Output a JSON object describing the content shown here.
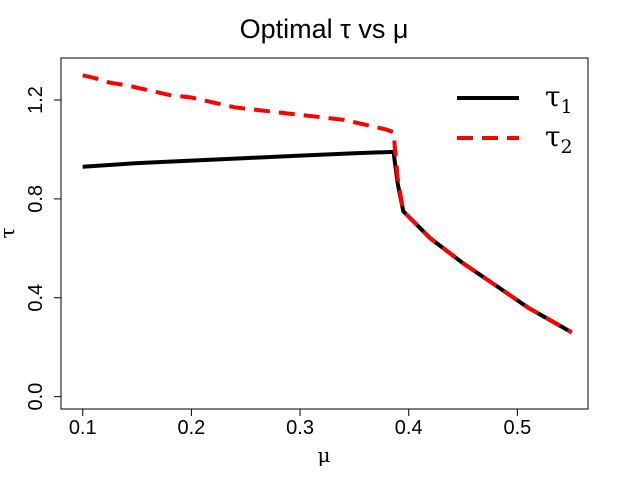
{
  "chart_data": {
    "type": "line",
    "title": "Optimal τ vs μ",
    "xlabel": "μ",
    "ylabel": "τ",
    "xlim": [
      0.08,
      0.565
    ],
    "ylim": [
      -0.05,
      1.37
    ],
    "x_ticks": [
      0.1,
      0.2,
      0.3,
      0.4,
      0.5
    ],
    "x_tick_labels": [
      "0.1",
      "0.2",
      "0.3",
      "0.4",
      "0.5"
    ],
    "y_ticks": [
      0.0,
      0.4,
      0.8,
      1.2
    ],
    "y_tick_labels": [
      "0.0",
      "0.4",
      "0.8",
      "1.2"
    ],
    "legend_position": "top-right",
    "series": [
      {
        "name": "τ1",
        "symbol": "τ",
        "subscript": "1",
        "color": "#000000",
        "style": "solid",
        "x": [
          0.1,
          0.15,
          0.2,
          0.25,
          0.3,
          0.35,
          0.386,
          0.39,
          0.395,
          0.42,
          0.45,
          0.48,
          0.51,
          0.55
        ],
        "y": [
          0.93,
          0.945,
          0.955,
          0.965,
          0.975,
          0.985,
          0.99,
          0.86,
          0.75,
          0.64,
          0.54,
          0.45,
          0.36,
          0.26
        ]
      },
      {
        "name": "τ2",
        "symbol": "τ",
        "subscript": "2",
        "color": "#ff0000",
        "style": "dashed",
        "x": [
          0.1,
          0.11,
          0.125,
          0.14,
          0.16,
          0.18,
          0.2,
          0.22,
          0.24,
          0.26,
          0.28,
          0.3,
          0.32,
          0.34,
          0.36,
          0.38,
          0.386,
          0.39,
          0.395,
          0.42,
          0.45,
          0.48,
          0.51,
          0.55
        ],
        "y": [
          1.3,
          1.29,
          1.27,
          1.26,
          1.24,
          1.22,
          1.21,
          1.19,
          1.17,
          1.16,
          1.15,
          1.14,
          1.13,
          1.12,
          1.1,
          1.08,
          1.07,
          0.88,
          0.75,
          0.64,
          0.54,
          0.45,
          0.36,
          0.26
        ]
      }
    ]
  }
}
